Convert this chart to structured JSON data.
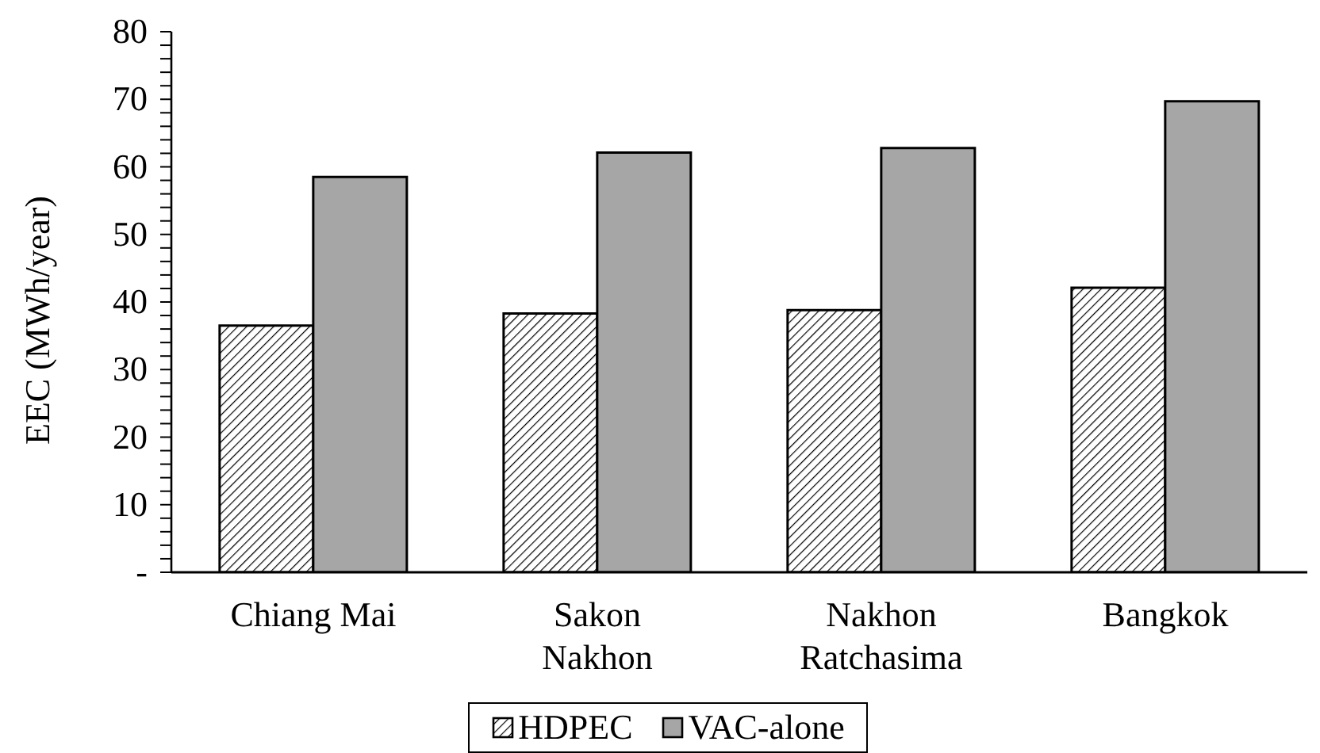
{
  "chart_data": {
    "type": "bar",
    "ylabel": "EEC (MWh/year)",
    "categories": [
      "Chiang Mai",
      "Sakon Nakhon",
      "Nakhon Ratchasima",
      "Bangkok"
    ],
    "series": [
      {
        "name": "HDPEC",
        "color": "#000000",
        "values": [
          36.5,
          38.3,
          38.8,
          42.1
        ]
      },
      {
        "name": "VAC-alone",
        "color": "#a6a6a6",
        "values": [
          58.5,
          62.1,
          62.8,
          69.7
        ]
      }
    ],
    "ylim": [
      0,
      80
    ],
    "yticks": [
      {
        "value": 0,
        "label": "-"
      },
      {
        "value": 2,
        "label": null
      },
      {
        "value": 4,
        "label": null
      },
      {
        "value": 6,
        "label": null
      },
      {
        "value": 8,
        "label": null
      },
      10,
      {
        "value": 12,
        "label": null
      },
      {
        "value": 14,
        "label": null
      },
      {
        "value": 16,
        "label": null
      },
      {
        "value": 18,
        "label": null
      },
      20,
      {
        "value": 22,
        "label": null
      },
      {
        "value": 24,
        "label": null
      },
      {
        "value": 26,
        "label": null
      },
      {
        "value": 28,
        "label": null
      },
      30,
      {
        "value": 32,
        "label": null
      },
      {
        "value": 34,
        "label": null
      },
      {
        "value": 36,
        "label": null
      },
      {
        "value": 38,
        "label": null
      },
      40,
      {
        "value": 42,
        "label": null
      },
      {
        "value": 44,
        "label": null
      },
      {
        "value": 46,
        "label": null
      },
      {
        "value": 48,
        "label": null
      },
      50,
      {
        "value": 52,
        "label": null
      },
      {
        "value": 54,
        "label": null
      },
      {
        "value": 56,
        "label": null
      },
      {
        "value": 58,
        "label": null
      },
      60,
      {
        "value": 62,
        "label": null
      },
      {
        "value": 64,
        "label": null
      },
      {
        "value": 66,
        "label": null
      },
      {
        "value": 68,
        "label": null
      },
      70,
      {
        "value": 72,
        "label": null
      },
      {
        "value": 74,
        "label": null
      },
      {
        "value": 76,
        "label": null
      },
      {
        "value": 78,
        "label": null
      },
      80
    ],
    "grid": false,
    "legend": "bottom"
  }
}
